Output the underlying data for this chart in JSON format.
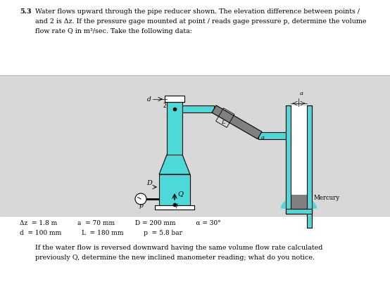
{
  "title_num": "5.3",
  "title_line1": "Water flows upward through the pipe reducer shown. The elevation difference between points /",
  "title_line2": "and 2 is Δz. If the pressure gage mounted at point / reads gage pressure p, determine the volume",
  "title_line3": "flow rate Q in m³/sec. Take the following data:",
  "data_line1": "Δz  = 1.8 m          a  = 70 mm          D = 200 mm          α = 30°",
  "data_line2": "d  = 100 mm          L  = 180 mm          p  = 5.8 bar",
  "bottom_text1": "If the water flow is reversed downward having the same volume flow rate calculated",
  "bottom_text2": "previously Q, determine the new inclined manometer reading; what do you notice.",
  "bg_top": "#ffffff",
  "bg_diagram": "#e0e0e0",
  "bg_bottom": "#ffffff",
  "pipe_fill": "#4dd9d9",
  "pipe_edge": "#000000",
  "mercury_fill": "#808080",
  "white_fill": "#ffffff",
  "sep_color": "#aaaaaa",
  "text_color": "#000000",
  "lw": 0.8
}
